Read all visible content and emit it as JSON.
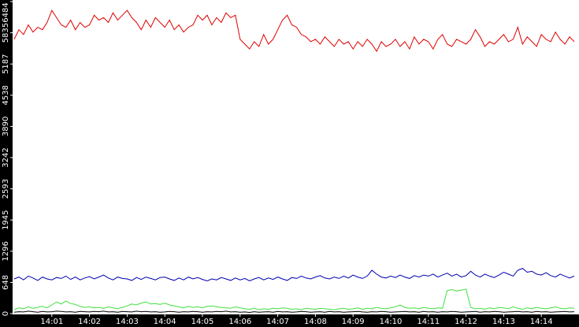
{
  "chart_data": {
    "type": "line",
    "xlim": [
      0,
      15
    ],
    "xticks": [
      {
        "value": 1,
        "label": "14:01"
      },
      {
        "value": 2,
        "label": "14:02"
      },
      {
        "value": 3,
        "label": "14:03"
      },
      {
        "value": 4,
        "label": "14:04"
      },
      {
        "value": 5,
        "label": "14:05"
      },
      {
        "value": 6,
        "label": "14:06"
      },
      {
        "value": 7,
        "label": "14:07"
      },
      {
        "value": 8,
        "label": "14:08"
      },
      {
        "value": 9,
        "label": "14:09"
      },
      {
        "value": 10,
        "label": "14:10"
      },
      {
        "value": 11,
        "label": "14:11"
      },
      {
        "value": 12,
        "label": "14:12"
      },
      {
        "value": 13,
        "label": "14:13"
      },
      {
        "value": 14,
        "label": "14:14"
      }
    ],
    "ylim": [
      0,
      6484
    ],
    "yticks": [
      0,
      648,
      1296,
      1945,
      2593,
      3242,
      3890,
      4538,
      5187,
      5835,
      6484
    ],
    "x": [
      0,
      0.125,
      0.25,
      0.375,
      0.5,
      0.625,
      0.75,
      0.875,
      1,
      1.125,
      1.25,
      1.375,
      1.5,
      1.625,
      1.75,
      1.875,
      2,
      2.125,
      2.25,
      2.375,
      2.5,
      2.625,
      2.75,
      2.875,
      3,
      3.125,
      3.25,
      3.375,
      3.5,
      3.625,
      3.75,
      3.875,
      4,
      4.125,
      4.25,
      4.375,
      4.5,
      4.625,
      4.75,
      4.875,
      5,
      5.125,
      5.25,
      5.375,
      5.5,
      5.625,
      5.75,
      5.875,
      6,
      6.125,
      6.25,
      6.375,
      6.5,
      6.625,
      6.75,
      6.875,
      7,
      7.125,
      7.25,
      7.375,
      7.5,
      7.625,
      7.75,
      7.875,
      8,
      8.125,
      8.25,
      8.375,
      8.5,
      8.625,
      8.75,
      8.875,
      9,
      9.125,
      9.25,
      9.375,
      9.5,
      9.625,
      9.75,
      9.875,
      10,
      10.125,
      10.25,
      10.375,
      10.5,
      10.625,
      10.75,
      10.875,
      11,
      11.125,
      11.25,
      11.375,
      11.5,
      11.625,
      11.75,
      11.875,
      12,
      12.125,
      12.25,
      12.375,
      12.5,
      12.625,
      12.75,
      12.875,
      13,
      13.125,
      13.25,
      13.375,
      13.5,
      13.625,
      13.75,
      13.875,
      14,
      14.125,
      14.25,
      14.375,
      14.5,
      14.625,
      14.75,
      14.875
    ],
    "series": [
      {
        "color": "#e00000",
        "values": [
          5700,
          5900,
          5800,
          6000,
          5850,
          5950,
          5900,
          6050,
          6300,
          6150,
          6000,
          5950,
          6100,
          5900,
          6050,
          5950,
          6000,
          6200,
          6100,
          6150,
          6050,
          6250,
          6100,
          6200,
          6300,
          6150,
          6050,
          5900,
          6100,
          5950,
          6150,
          6050,
          5950,
          6100,
          5900,
          6000,
          5850,
          5950,
          6000,
          6200,
          6100,
          6200,
          6000,
          6150,
          6050,
          6250,
          6150,
          6200,
          5700,
          5600,
          5500,
          5650,
          5550,
          5800,
          5600,
          5700,
          5900,
          6100,
          6200,
          6000,
          5950,
          5800,
          5750,
          5650,
          5700,
          5600,
          5750,
          5650,
          5550,
          5700,
          5600,
          5650,
          5500,
          5650,
          5550,
          5700,
          5600,
          5450,
          5650,
          5550,
          5600,
          5700,
          5550,
          5650,
          5500,
          5750,
          5600,
          5700,
          5650,
          5500,
          5700,
          5800,
          5600,
          5550,
          5700,
          5650,
          5600,
          5700,
          5900,
          5750,
          5550,
          5650,
          5600,
          5700,
          5800,
          5650,
          5700,
          5950,
          5600,
          5750,
          5650,
          5550,
          5800,
          5700,
          5650,
          5850,
          5700,
          5600,
          5750,
          5650
        ]
      },
      {
        "color": "#0000b0",
        "values": [
          720,
          760,
          700,
          780,
          740,
          690,
          760,
          720,
          700,
          750,
          730,
          780,
          710,
          760,
          700,
          740,
          770,
          720,
          760,
          800,
          740,
          700,
          760,
          730,
          720,
          690,
          750,
          710,
          760,
          730,
          700,
          750,
          760,
          720,
          690,
          740,
          700,
          760,
          720,
          750,
          710,
          680,
          720,
          700,
          750,
          720,
          690,
          740,
          700,
          730,
          680,
          720,
          750,
          700,
          740,
          710,
          760,
          720,
          690,
          750,
          730,
          780,
          740,
          720,
          760,
          790,
          740,
          720,
          760,
          730,
          780,
          740,
          800,
          760,
          730,
          780,
          900,
          820,
          760,
          740,
          780,
          750,
          800,
          760,
          730,
          790,
          760,
          800,
          780,
          820,
          760,
          800,
          840,
          780,
          820,
          760,
          790,
          880,
          800,
          760,
          820,
          780,
          750,
          800,
          860,
          820,
          780,
          900,
          940,
          860,
          880,
          820,
          800,
          850,
          790,
          760,
          820,
          780,
          740,
          780
        ]
      },
      {
        "color": "#40e040",
        "values": [
          80,
          120,
          100,
          140,
          110,
          130,
          150,
          120,
          180,
          240,
          200,
          260,
          210,
          190,
          150,
          130,
          140,
          120,
          130,
          110,
          140,
          120,
          100,
          130,
          160,
          200,
          180,
          220,
          240,
          200,
          210,
          190,
          220,
          180,
          160,
          140,
          120,
          150,
          130,
          140,
          120,
          150,
          160,
          140,
          130,
          120,
          110,
          140,
          120,
          100,
          90,
          110,
          80,
          100,
          90,
          110,
          100,
          120,
          110,
          90,
          100,
          80,
          110,
          100,
          90,
          110,
          100,
          90,
          80,
          100,
          110,
          90,
          100,
          120,
          90,
          110,
          100,
          130,
          110,
          100,
          120,
          140,
          180,
          130,
          110,
          120,
          100,
          130,
          110,
          100,
          120,
          110,
          480,
          500,
          470,
          490,
          510,
          130,
          100,
          110,
          90,
          120,
          100,
          130,
          120,
          100,
          140,
          110,
          90,
          120,
          100,
          130,
          110,
          100,
          120,
          140,
          110,
          100,
          120,
          110
        ]
      },
      {
        "color": "#000000",
        "values": [
          30,
          40,
          35,
          50,
          40,
          30,
          45,
          35,
          40,
          50,
          45,
          35,
          40,
          30,
          45,
          40,
          35,
          45,
          40,
          50,
          35,
          40,
          30,
          45,
          40,
          35,
          50,
          40,
          45,
          35,
          40,
          30,
          35,
          45,
          40,
          30,
          40,
          35,
          45,
          40,
          30,
          40,
          35,
          45,
          40,
          50,
          35,
          40,
          30,
          35,
          25,
          40,
          30,
          35,
          40,
          30,
          45,
          35,
          40,
          30,
          35,
          45,
          40,
          30,
          35,
          40,
          30,
          45,
          35,
          40,
          30,
          35,
          40,
          45,
          35,
          30,
          40,
          35,
          45,
          40,
          30,
          35,
          40,
          45,
          35,
          40,
          30,
          45,
          35,
          40,
          30,
          40,
          35,
          45,
          40,
          30,
          35,
          40,
          45,
          30,
          40,
          35,
          45,
          40,
          30,
          35,
          40,
          45,
          35,
          40,
          30,
          45,
          35,
          40,
          30,
          35,
          40,
          45,
          35,
          40
        ]
      }
    ]
  }
}
